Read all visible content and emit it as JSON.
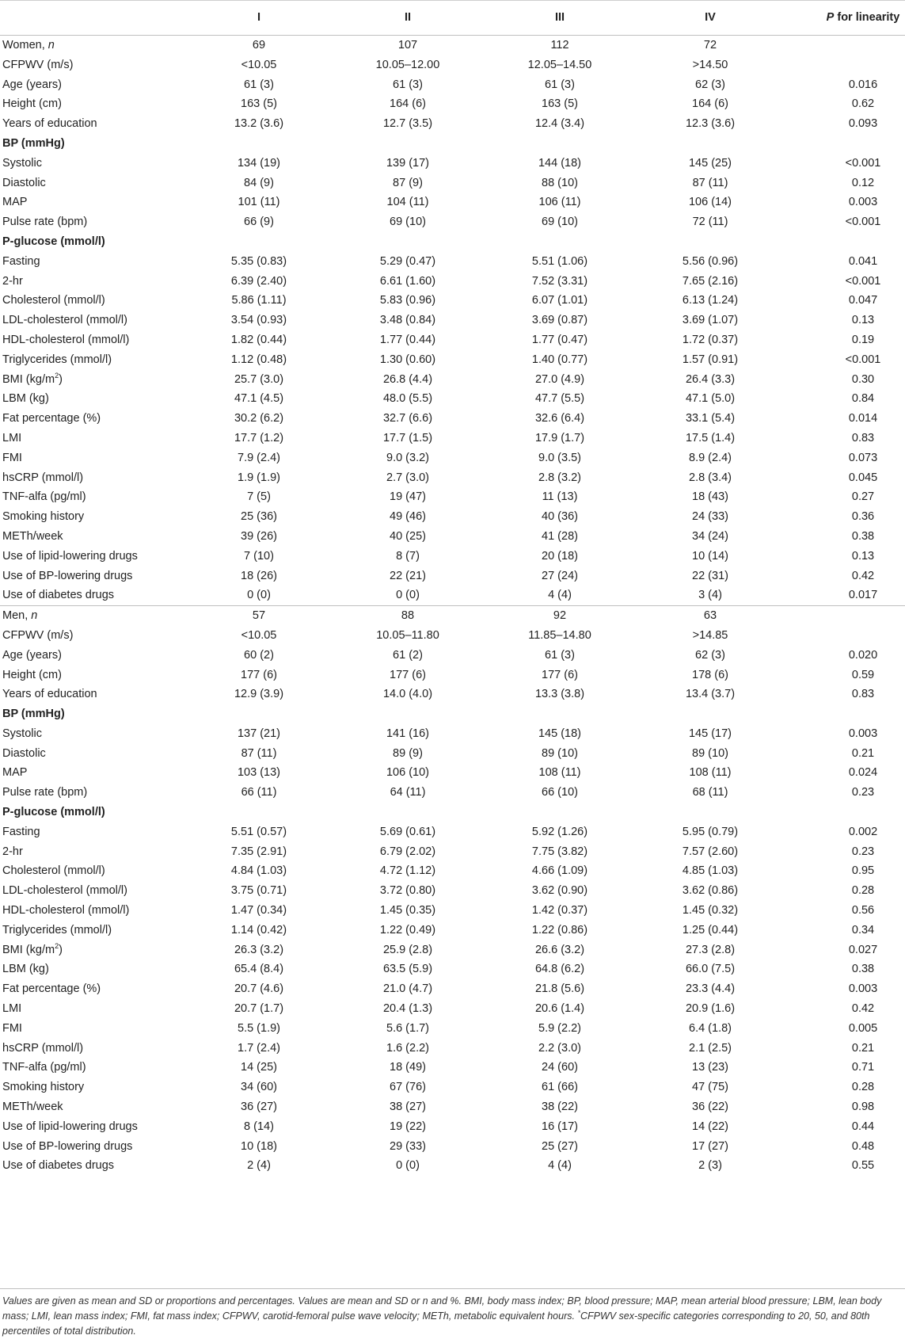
{
  "header": {
    "label": "",
    "cols": [
      "I",
      "II",
      "III",
      "IV"
    ],
    "p_prefix": "P",
    "p_suffix": " for linearity"
  },
  "women": [
    {
      "label": "Women, ",
      "label_italic": "n",
      "v": [
        "69",
        "107",
        "112",
        "72",
        ""
      ]
    },
    {
      "label": "CFPWV (m/s)",
      "v": [
        "<10.05",
        "10.05–12.00",
        "12.05–14.50",
        ">14.50",
        ""
      ]
    },
    {
      "label": "Age (years)",
      "v": [
        "61 (3)",
        "61 (3)",
        "61 (3)",
        "62 (3)",
        "0.016"
      ]
    },
    {
      "label": "Height (cm)",
      "v": [
        "163 (5)",
        "164 (6)",
        "163 (5)",
        "164 (6)",
        "0.62"
      ]
    },
    {
      "label": "Years of education",
      "v": [
        "13.2 (3.6)",
        "12.7 (3.5)",
        "12.4 (3.4)",
        "12.3 (3.6)",
        "0.093"
      ]
    },
    {
      "label": "BP (mmHg)",
      "bold": true,
      "v": [
        "",
        "",
        "",
        "",
        ""
      ]
    },
    {
      "label": "Systolic",
      "v": [
        "134 (19)",
        "139 (17)",
        "144 (18)",
        "145 (25)",
        "<0.001"
      ]
    },
    {
      "label": "Diastolic",
      "v": [
        "84 (9)",
        "87 (9)",
        "88 (10)",
        "87 (11)",
        "0.12"
      ]
    },
    {
      "label": "MAP",
      "v": [
        "101 (11)",
        "104 (11)",
        "106 (11)",
        "106 (14)",
        "0.003"
      ]
    },
    {
      "label": "Pulse rate (bpm)",
      "v": [
        "66 (9)",
        "69 (10)",
        "69 (10)",
        "72 (11)",
        "<0.001"
      ]
    },
    {
      "label": "P-glucose (mmol/l)",
      "bold": true,
      "v": [
        "",
        "",
        "",
        "",
        ""
      ]
    },
    {
      "label": "Fasting",
      "v": [
        "5.35 (0.83)",
        "5.29 (0.47)",
        "5.51 (1.06)",
        "5.56 (0.96)",
        "0.041"
      ]
    },
    {
      "label": "2-hr",
      "v": [
        "6.39 (2.40)",
        "6.61 (1.60)",
        "7.52 (3.31)",
        "7.65 (2.16)",
        "<0.001"
      ]
    },
    {
      "label": "Cholesterol (mmol/l)",
      "v": [
        "5.86 (1.11)",
        "5.83 (0.96)",
        "6.07 (1.01)",
        "6.13 (1.24)",
        "0.047"
      ]
    },
    {
      "label": "LDL-cholesterol (mmol/l)",
      "v": [
        "3.54 (0.93)",
        "3.48 (0.84)",
        "3.69 (0.87)",
        "3.69 (1.07)",
        "0.13"
      ]
    },
    {
      "label": "HDL-cholesterol (mmol/l)",
      "v": [
        "1.82 (0.44)",
        "1.77 (0.44)",
        "1.77 (0.47)",
        "1.72 (0.37)",
        "0.19"
      ]
    },
    {
      "label": "Triglycerides (mmol/l)",
      "v": [
        "1.12 (0.48)",
        "1.30 (0.60)",
        "1.40 (0.77)",
        "1.57 (0.91)",
        "<0.001"
      ]
    },
    {
      "label": "BMI (kg/m",
      "sup": "2",
      "label_end": ")",
      "v": [
        "25.7 (3.0)",
        "26.8 (4.4)",
        "27.0 (4.9)",
        "26.4 (3.3)",
        "0.30"
      ]
    },
    {
      "label": "LBM (kg)",
      "v": [
        "47.1 (4.5)",
        "48.0 (5.5)",
        "47.7 (5.5)",
        "47.1 (5.0)",
        "0.84"
      ]
    },
    {
      "label": "Fat percentage (%)",
      "v": [
        "30.2 (6.2)",
        "32.7 (6.6)",
        "32.6 (6.4)",
        "33.1 (5.4)",
        "0.014"
      ]
    },
    {
      "label": "LMI",
      "v": [
        "17.7 (1.2)",
        "17.7 (1.5)",
        "17.9 (1.7)",
        "17.5 (1.4)",
        "0.83"
      ]
    },
    {
      "label": "FMI",
      "v": [
        "7.9 (2.4)",
        "9.0 (3.2)",
        "9.0 (3.5)",
        "8.9 (2.4)",
        "0.073"
      ]
    },
    {
      "label": "hsCRP (mmol/l)",
      "v": [
        "1.9 (1.9)",
        "2.7 (3.0)",
        "2.8 (3.2)",
        "2.8 (3.4)",
        "0.045"
      ]
    },
    {
      "label": "TNF-alfa (pg/ml)",
      "v": [
        "7 (5)",
        "19 (47)",
        "11 (13)",
        "18 (43)",
        "0.27"
      ]
    },
    {
      "label": "Smoking history",
      "v": [
        "25 (36)",
        "49 (46)",
        "40 (36)",
        "24 (33)",
        "0.36"
      ]
    },
    {
      "label": "METh/week",
      "v": [
        "39 (26)",
        "40 (25)",
        "41 (28)",
        "34 (24)",
        "0.38"
      ]
    },
    {
      "label": "Use of lipid-lowering drugs",
      "v": [
        "7 (10)",
        "8 (7)",
        "20 (18)",
        "10 (14)",
        "0.13"
      ]
    },
    {
      "label": "Use of BP-lowering drugs",
      "v": [
        "18 (26)",
        "22 (21)",
        "27 (24)",
        "22 (31)",
        "0.42"
      ]
    },
    {
      "label": "Use of diabetes drugs",
      "v": [
        "0 (0)",
        "0 (0)",
        "4 (4)",
        "3 (4)",
        "0.017"
      ]
    }
  ],
  "men": [
    {
      "label": "Men, ",
      "label_italic": "n",
      "v": [
        "57",
        "88",
        "92",
        "63",
        ""
      ]
    },
    {
      "label": "CFPWV (m/s)",
      "v": [
        "<10.05",
        "10.05–11.80",
        "11.85–14.80",
        ">14.85",
        ""
      ]
    },
    {
      "label": "Age (years)",
      "v": [
        "60 (2)",
        "61 (2)",
        "61 (3)",
        "62 (3)",
        "0.020"
      ]
    },
    {
      "label": "Height (cm)",
      "v": [
        "177 (6)",
        "177 (6)",
        "177 (6)",
        "178 (6)",
        "0.59"
      ]
    },
    {
      "label": "Years of education",
      "v": [
        "12.9 (3.9)",
        "14.0 (4.0)",
        "13.3 (3.8)",
        "13.4 (3.7)",
        "0.83"
      ]
    },
    {
      "label": "BP (mmHg)",
      "bold": true,
      "v": [
        "",
        "",
        "",
        "",
        ""
      ]
    },
    {
      "label": "Systolic",
      "v": [
        "137 (21)",
        "141 (16)",
        "145 (18)",
        "145 (17)",
        "0.003"
      ]
    },
    {
      "label": "Diastolic",
      "v": [
        "87 (11)",
        "89 (9)",
        "89 (10)",
        "89 (10)",
        "0.21"
      ]
    },
    {
      "label": "MAP",
      "v": [
        "103 (13)",
        "106 (10)",
        "108 (11)",
        "108 (11)",
        "0.024"
      ]
    },
    {
      "label": "Pulse rate (bpm)",
      "v": [
        "66 (11)",
        "64 (11)",
        "66 (10)",
        "68 (11)",
        "0.23"
      ]
    },
    {
      "label": "P-glucose (mmol/l)",
      "bold": true,
      "v": [
        "",
        "",
        "",
        "",
        ""
      ]
    },
    {
      "label": "Fasting",
      "v": [
        "5.51 (0.57)",
        "5.69 (0.61)",
        "5.92 (1.26)",
        "5.95 (0.79)",
        "0.002"
      ]
    },
    {
      "label": "2-hr",
      "v": [
        "7.35 (2.91)",
        "6.79 (2.02)",
        "7.75 (3.82)",
        "7.57 (2.60)",
        "0.23"
      ]
    },
    {
      "label": "Cholesterol (mmol/l)",
      "v": [
        "4.84 (1.03)",
        "4.72 (1.12)",
        "4.66 (1.09)",
        "4.85 (1.03)",
        "0.95"
      ]
    },
    {
      "label": "LDL-cholesterol (mmol/l)",
      "v": [
        "3.75 (0.71)",
        "3.72 (0.80)",
        "3.62 (0.90)",
        "3.62 (0.86)",
        "0.28"
      ]
    },
    {
      "label": "HDL-cholesterol (mmol/l)",
      "v": [
        "1.47 (0.34)",
        "1.45 (0.35)",
        "1.42 (0.37)",
        "1.45 (0.32)",
        "0.56"
      ]
    },
    {
      "label": "Triglycerides (mmol/l)",
      "v": [
        "1.14 (0.42)",
        "1.22 (0.49)",
        "1.22 (0.86)",
        "1.25 (0.44)",
        "0.34"
      ]
    },
    {
      "label": "BMI (kg/m",
      "sup": "2",
      "label_end": ")",
      "v": [
        "26.3 (3.2)",
        "25.9 (2.8)",
        "26.6 (3.2)",
        "27.3 (2.8)",
        "0.027"
      ]
    },
    {
      "label": "LBM (kg)",
      "v": [
        "65.4 (8.4)",
        "63.5 (5.9)",
        "64.8 (6.2)",
        "66.0 (7.5)",
        "0.38"
      ]
    },
    {
      "label": "Fat percentage (%)",
      "v": [
        "20.7 (4.6)",
        "21.0 (4.7)",
        "21.8 (5.6)",
        "23.3 (4.4)",
        "0.003"
      ]
    },
    {
      "label": "LMI",
      "v": [
        "20.7 (1.7)",
        "20.4 (1.3)",
        "20.6 (1.4)",
        "20.9 (1.6)",
        "0.42"
      ]
    },
    {
      "label": "FMI",
      "v": [
        "5.5 (1.9)",
        "5.6 (1.7)",
        "5.9 (2.2)",
        "6.4 (1.8)",
        "0.005"
      ]
    },
    {
      "label": "hsCRP (mmol/l)",
      "v": [
        "1.7 (2.4)",
        "1.6 (2.2)",
        "2.2 (3.0)",
        "2.1 (2.5)",
        "0.21"
      ]
    },
    {
      "label": "TNF-alfa (pg/ml)",
      "v": [
        "14 (25)",
        "18 (49)",
        "24 (60)",
        "13 (23)",
        "0.71"
      ]
    },
    {
      "label": "Smoking history",
      "v": [
        "34 (60)",
        "67 (76)",
        "61 (66)",
        "47 (75)",
        "0.28"
      ]
    },
    {
      "label": "METh/week",
      "v": [
        "36 (27)",
        "38 (27)",
        "38 (22)",
        "36 (22)",
        "0.98"
      ]
    },
    {
      "label": "Use of lipid-lowering drugs",
      "v": [
        "8 (14)",
        "19 (22)",
        "16 (17)",
        "14 (22)",
        "0.44"
      ]
    },
    {
      "label": "Use of BP-lowering drugs",
      "v": [
        "10 (18)",
        "29 (33)",
        "25 (27)",
        "17 (27)",
        "0.48"
      ]
    },
    {
      "label": "Use of diabetes drugs",
      "v": [
        "2 (4)",
        "0 (0)",
        "4 (4)",
        "2 (3)",
        "0.55"
      ]
    }
  ],
  "footnote": {
    "text_before": "Values are given as mean and SD or proportions and percentages. Values are mean and SD or n and %. BMI, body mass index; BP, blood pressure; MAP, mean arterial blood pressure; LBM, lean body mass; LMI, lean mass index; FMI, fat mass index; CFPWV, carotid-femoral pulse wave velocity; METh, metabolic equivalent hours. ",
    "marker": "*",
    "text_after": "CFPWV sex-specific categories corresponding to 20, 50, and 80th percentiles of total distribution."
  }
}
